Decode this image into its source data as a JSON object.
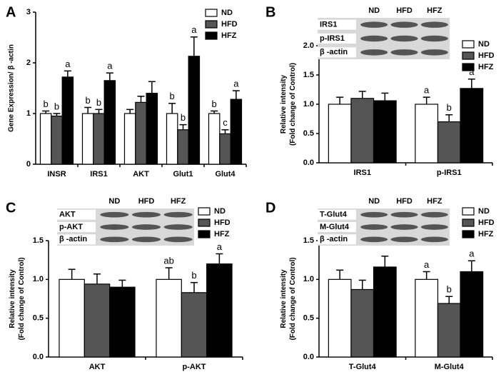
{
  "chart_data": [
    {
      "type": "bar",
      "panel": "A",
      "ylabel": [
        "Gene Expression/ β -actin"
      ],
      "categories": [
        "INSR",
        "IRS1",
        "AKT",
        "Glut1",
        "Glut4"
      ],
      "ylim": [
        0,
        3
      ],
      "yticks": [
        0,
        1,
        2,
        3
      ],
      "series": [
        {
          "name": "ND",
          "color": "#ffffff",
          "values": [
            1.0,
            1.0,
            1.0,
            1.0,
            1.0
          ],
          "errors": [
            0.05,
            0.12,
            0.08,
            0.2,
            0.05
          ],
          "letters": [
            "b",
            "b",
            null,
            "b",
            "b"
          ]
        },
        {
          "name": "HFD",
          "color": "#555555",
          "values": [
            0.95,
            1.0,
            1.22,
            0.68,
            0.6
          ],
          "errors": [
            0.05,
            0.08,
            0.12,
            0.1,
            0.08
          ],
          "letters": [
            "b",
            "b",
            null,
            "b",
            "c"
          ]
        },
        {
          "name": "HFZ",
          "color": "#000000",
          "values": [
            1.72,
            1.65,
            1.4,
            2.13,
            1.28
          ],
          "errors": [
            0.12,
            0.15,
            0.23,
            0.38,
            0.17
          ],
          "letters": [
            "a",
            "a",
            null,
            "a",
            "a"
          ]
        }
      ]
    },
    {
      "type": "bar",
      "panel": "B",
      "ylabel": [
        "Relative intensity",
        "(Fold change of Control)"
      ],
      "categories": [
        "IRS1",
        "p-IRS1"
      ],
      "ylim": [
        0,
        2
      ],
      "yticks": [
        {
          "value": 0,
          "label": "0.0"
        },
        {
          "value": 0.5,
          "label": "0.5"
        },
        {
          "value": 1,
          "label": "1.0"
        },
        {
          "value": 1.5,
          "label": "1.5"
        },
        {
          "value": 2,
          "label": "2.0"
        }
      ],
      "blot": {
        "columns": [
          "ND",
          "HFD",
          "HFZ"
        ],
        "rows": [
          "IRS1",
          "p-IRS1",
          "β -actin"
        ]
      },
      "series": [
        {
          "name": "ND",
          "color": "#ffffff",
          "values": [
            1.0,
            1.0
          ],
          "errors": [
            0.12,
            0.12
          ],
          "letters": [
            null,
            "a"
          ]
        },
        {
          "name": "HFD",
          "color": "#555555",
          "values": [
            1.1,
            0.7
          ],
          "errors": [
            0.12,
            0.12
          ],
          "letters": [
            null,
            "b"
          ]
        },
        {
          "name": "HFZ",
          "color": "#000000",
          "values": [
            1.06,
            1.27
          ],
          "errors": [
            0.13,
            0.16
          ],
          "letters": [
            null,
            "a"
          ]
        }
      ]
    },
    {
      "type": "bar",
      "panel": "C",
      "ylabel": [
        "Relative intensity",
        "(Fold change of Control)"
      ],
      "categories": [
        "AKT",
        "p-AKT"
      ],
      "ylim": [
        0,
        1.5
      ],
      "yticks": [
        {
          "value": 0,
          "label": "0.0"
        },
        {
          "value": 0.5,
          "label": "0.5"
        },
        {
          "value": 1,
          "label": "1.0"
        },
        {
          "value": 1.5,
          "label": "1.5"
        }
      ],
      "blot": {
        "columns": [
          "ND",
          "HFD",
          "HFZ"
        ],
        "rows": [
          "AKT",
          "p-AKT",
          "β -actin"
        ]
      },
      "series": [
        {
          "name": "ND",
          "color": "#ffffff",
          "values": [
            1.0,
            1.0
          ],
          "errors": [
            0.13,
            0.15
          ],
          "letters": [
            null,
            "ab"
          ]
        },
        {
          "name": "HFD",
          "color": "#555555",
          "values": [
            0.94,
            0.83
          ],
          "errors": [
            0.13,
            0.13
          ],
          "letters": [
            null,
            "b"
          ]
        },
        {
          "name": "HFZ",
          "color": "#000000",
          "values": [
            0.9,
            1.2
          ],
          "errors": [
            0.09,
            0.13
          ],
          "letters": [
            null,
            "a"
          ]
        }
      ]
    },
    {
      "type": "bar",
      "panel": "D",
      "ylabel": [
        "Relative intensity",
        "(Fold change of Control)"
      ],
      "categories": [
        "T-Glut4",
        "M-Glut4"
      ],
      "ylim": [
        0,
        1.5
      ],
      "yticks": [
        {
          "value": 0,
          "label": "0.0"
        },
        {
          "value": 0.5,
          "label": "0.5"
        },
        {
          "value": 1,
          "label": "1.0"
        },
        {
          "value": 1.5,
          "label": "1.5"
        }
      ],
      "blot": {
        "columns": [
          "ND",
          "HFD",
          "HFZ"
        ],
        "rows": [
          "T-Glut4",
          "M-Glut4",
          "β -actin"
        ]
      },
      "series": [
        {
          "name": "ND",
          "color": "#ffffff",
          "values": [
            1.0,
            1.0
          ],
          "errors": [
            0.12,
            0.1
          ],
          "letters": [
            null,
            "a"
          ]
        },
        {
          "name": "HFD",
          "color": "#555555",
          "values": [
            0.87,
            0.69
          ],
          "errors": [
            0.12,
            0.09
          ],
          "letters": [
            null,
            "b"
          ]
        },
        {
          "name": "HFZ",
          "color": "#000000",
          "values": [
            1.16,
            1.1
          ],
          "errors": [
            0.14,
            0.14
          ],
          "letters": [
            null,
            "a"
          ]
        }
      ]
    }
  ]
}
